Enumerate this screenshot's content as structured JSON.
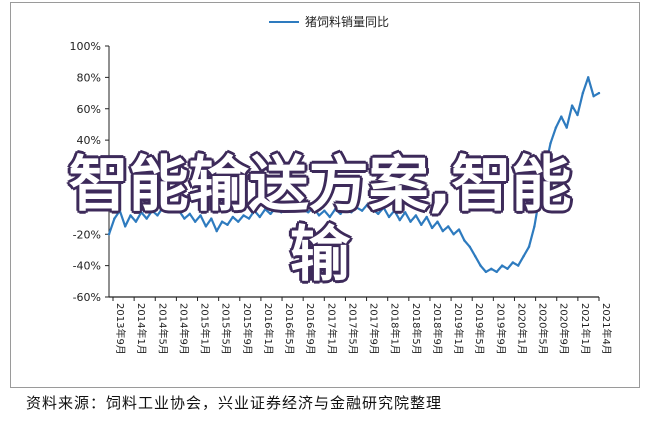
{
  "chart_data": {
    "type": "line",
    "title": "",
    "xlabel": "",
    "ylabel": "",
    "ylim": [
      -60,
      100
    ],
    "yticks": [
      100,
      80,
      60,
      40,
      20,
      0,
      -20,
      -40,
      -60
    ],
    "ytick_labels": [
      "100%",
      "80%",
      "60%",
      "40%",
      "20%",
      "0%",
      "-20%",
      "-40%",
      "-60%"
    ],
    "xtick_labels": [
      "2013年9月",
      "2014年1月",
      "2014年5月",
      "2014年9月",
      "2015年1月",
      "2015年5月",
      "2015年9月",
      "2016年1月",
      "2016年5月",
      "2016年9月",
      "2017年1月",
      "2017年5月",
      "2017年9月",
      "2018年1月",
      "2018年5月",
      "2018年9月",
      "2019年1月",
      "2019年5月",
      "2019年9月",
      "2020年1月",
      "2020年5月",
      "2020年9月",
      "2021年1月",
      "2021年4月"
    ],
    "series": [
      {
        "name": "猪饲料销量同比",
        "color": "#2e7bbf",
        "x": [
          "2013-09",
          "2013-10",
          "2013-11",
          "2013-12",
          "2014-01",
          "2014-02",
          "2014-03",
          "2014-04",
          "2014-05",
          "2014-06",
          "2014-07",
          "2014-08",
          "2014-09",
          "2014-10",
          "2014-11",
          "2014-12",
          "2015-01",
          "2015-02",
          "2015-03",
          "2015-04",
          "2015-05",
          "2015-06",
          "2015-07",
          "2015-08",
          "2015-09",
          "2015-10",
          "2015-11",
          "2015-12",
          "2016-01",
          "2016-02",
          "2016-03",
          "2016-04",
          "2016-05",
          "2016-06",
          "2016-07",
          "2016-08",
          "2016-09",
          "2016-10",
          "2016-11",
          "2016-12",
          "2017-01",
          "2017-02",
          "2017-03",
          "2017-04",
          "2017-05",
          "2017-06",
          "2017-07",
          "2017-08",
          "2017-09",
          "2017-10",
          "2017-11",
          "2017-12",
          "2018-01",
          "2018-02",
          "2018-03",
          "2018-04",
          "2018-05",
          "2018-06",
          "2018-07",
          "2018-08",
          "2018-09",
          "2018-10",
          "2018-11",
          "2018-12",
          "2019-01",
          "2019-02",
          "2019-03",
          "2019-04",
          "2019-05",
          "2019-06",
          "2019-07",
          "2019-08",
          "2019-09",
          "2019-10",
          "2019-11",
          "2019-12",
          "2020-01",
          "2020-02",
          "2020-03",
          "2020-04",
          "2020-05",
          "2020-06",
          "2020-07",
          "2020-08",
          "2020-09",
          "2020-10",
          "2020-11",
          "2020-12",
          "2021-01",
          "2021-02",
          "2021-03",
          "2021-04"
        ],
        "values": [
          -20,
          -10,
          -5,
          -15,
          -8,
          -12,
          -6,
          -10,
          -5,
          -8,
          -3,
          -6,
          -2,
          -5,
          -10,
          -7,
          -12,
          -8,
          -15,
          -10,
          -18,
          -12,
          -14,
          -9,
          -12,
          -8,
          -10,
          -5,
          -9,
          -4,
          -7,
          -3,
          -6,
          -2,
          -5,
          -1,
          -4,
          -6,
          -3,
          -8,
          -5,
          -9,
          -4,
          -7,
          -2,
          -6,
          -3,
          -5,
          -1,
          -4,
          -7,
          -3,
          -9,
          -5,
          -11,
          -6,
          -12,
          -8,
          -14,
          -9,
          -16,
          -12,
          -18,
          -15,
          -20,
          -17,
          -24,
          -28,
          -34,
          -40,
          -44,
          -42,
          -44,
          -40,
          -42,
          -38,
          -40,
          -34,
          -28,
          -15,
          5,
          22,
          38,
          48,
          55,
          48,
          62,
          56,
          70,
          80,
          68,
          70
        ]
      }
    ]
  },
  "source_note": "资料来源：饲料工业协会，兴业证券经济与金融研究院整理",
  "overlay_text": "智能输送方案,智能输"
}
